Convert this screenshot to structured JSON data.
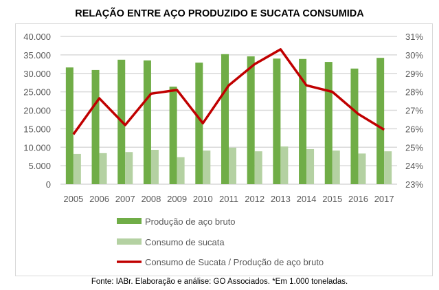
{
  "chart_data": {
    "type": "bar",
    "title": "RELAÇÃO ENTRE AÇO PRODUZIDO E SUCATA CONSUMIDA",
    "categories": [
      "2005",
      "2006",
      "2007",
      "2008",
      "2009",
      "2010",
      "2011",
      "2012",
      "2013",
      "2014",
      "2015",
      "2016",
      "2017"
    ],
    "series": [
      {
        "name": "Produção de aço bruto",
        "type": "bar",
        "axis": "left",
        "color": "#70ad47",
        "values": [
          31600,
          30900,
          33700,
          33500,
          26400,
          32900,
          35200,
          34600,
          34000,
          33900,
          33100,
          31300,
          34200
        ]
      },
      {
        "name": "Consumo de sucata",
        "type": "bar",
        "axis": "left",
        "color": "#b4d1a2",
        "values": [
          8200,
          8400,
          8700,
          9300,
          7300,
          9100,
          9900,
          8900,
          10200,
          9500,
          9100,
          8300,
          8900
        ]
      },
      {
        "name": "Consumo de Sucata / Produção de aço bruto",
        "type": "line",
        "axis": "right",
        "color": "#c00000",
        "values": [
          25.7,
          27.65,
          26.2,
          27.9,
          28.1,
          26.3,
          28.35,
          29.5,
          30.3,
          28.35,
          28.0,
          26.8,
          25.95
        ]
      }
    ],
    "left_axis": {
      "ylim": [
        0,
        40000
      ],
      "ticks": [
        "0",
        "5.000",
        "10.000",
        "15.000",
        "20.000",
        "25.000",
        "30.000",
        "35.000",
        "40.000"
      ]
    },
    "right_axis": {
      "ylim": [
        23,
        31
      ],
      "ticks": [
        "23%",
        "24%",
        "25%",
        "26%",
        "27%",
        "28%",
        "29%",
        "30%",
        "31%"
      ]
    },
    "grid": true,
    "legend": "bottom",
    "footnote": "Fonte: IABr. Elaboração e análise: GO Associados. *Em 1.000 toneladas."
  }
}
